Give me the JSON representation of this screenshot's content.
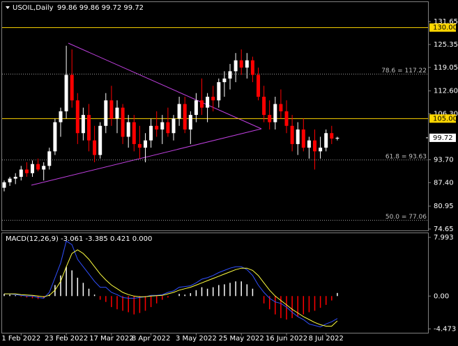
{
  "chart_data": {
    "type": "candlestick",
    "title": "USOIL,Daily",
    "ohlc_header": "99.86 99.86 99.72 99.72",
    "up_color": "#ffffff",
    "down_color": "#ff0000",
    "categories": [
      null,
      null,
      null,
      "1 Feb 2022",
      null,
      null,
      null,
      null,
      null,
      null,
      null,
      "23 Feb 2022",
      null,
      null,
      null,
      null,
      null,
      null,
      null,
      "17 Mar 2022",
      null,
      null,
      null,
      null,
      null,
      null,
      "8 Apr 2022",
      null,
      null,
      null,
      null,
      null,
      null,
      null,
      "3 May 2022",
      null,
      null,
      null,
      null,
      null,
      null,
      null,
      "25 May 2022",
      null,
      null,
      null,
      null,
      null,
      null,
      null,
      "16 Jun 2022",
      null,
      null,
      null,
      null,
      null,
      null,
      "8 Jul 2022",
      null,
      null
    ],
    "ohlc": [
      [
        86,
        88,
        85,
        87.5
      ],
      [
        87.5,
        89,
        86.5,
        88.5
      ],
      [
        88.5,
        90,
        87,
        89
      ],
      [
        89,
        92,
        88,
        91
      ],
      [
        91,
        93,
        89,
        90
      ],
      [
        90,
        93.5,
        89,
        92.5
      ],
      [
        92.5,
        94,
        90.5,
        91
      ],
      [
        91,
        93,
        88,
        92
      ],
      [
        92,
        97,
        91,
        96
      ],
      [
        96,
        105,
        95,
        104
      ],
      [
        104,
        108,
        100,
        107
      ],
      [
        107,
        125,
        105,
        117
      ],
      [
        117,
        124,
        108,
        110
      ],
      [
        110,
        112,
        98,
        101
      ],
      [
        101,
        108,
        99,
        106
      ],
      [
        106,
        109,
        96,
        99
      ],
      [
        99,
        103,
        93,
        95
      ],
      [
        95,
        104,
        94,
        103
      ],
      [
        103,
        112,
        101,
        110
      ],
      [
        110,
        114,
        103,
        105
      ],
      [
        105,
        110,
        101,
        108
      ],
      [
        108,
        109,
        98,
        100
      ],
      [
        100,
        106,
        97,
        104
      ],
      [
        104,
        106,
        96,
        98
      ],
      [
        98,
        103,
        94,
        97
      ],
      [
        97,
        101,
        93,
        99
      ],
      [
        99,
        105,
        97,
        103
      ],
      [
        103,
        107,
        100,
        102
      ],
      [
        102,
        106,
        98,
        104
      ],
      [
        104,
        108,
        100,
        101
      ],
      [
        101,
        106,
        99,
        105
      ],
      [
        105,
        111,
        103,
        109
      ],
      [
        109,
        111,
        101,
        102
      ],
      [
        102,
        107,
        98,
        106
      ],
      [
        106,
        112,
        104,
        110
      ],
      [
        110,
        116,
        106,
        108
      ],
      [
        108,
        112,
        104,
        111
      ],
      [
        111,
        114,
        107,
        110
      ],
      [
        110,
        116,
        108,
        115
      ],
      [
        115,
        118,
        111,
        116
      ],
      [
        116,
        120,
        113,
        118
      ],
      [
        118,
        123,
        115,
        121
      ],
      [
        121,
        124,
        117,
        119
      ],
      [
        119,
        123,
        116,
        121
      ],
      [
        121,
        122,
        115,
        117
      ],
      [
        117,
        119,
        110,
        111
      ],
      [
        111,
        114,
        104,
        106
      ],
      [
        106,
        110,
        102,
        104
      ],
      [
        104,
        111,
        102,
        109
      ],
      [
        109,
        113,
        105,
        107
      ],
      [
        107,
        110,
        101,
        103
      ],
      [
        103,
        106,
        96,
        98
      ],
      [
        98,
        104,
        95,
        102
      ],
      [
        102,
        105,
        96,
        97
      ],
      [
        97,
        100,
        94,
        99
      ],
      [
        99,
        102,
        91,
        96
      ],
      [
        96,
        100,
        94,
        97
      ],
      [
        97,
        102,
        96,
        101
      ],
      [
        101,
        103,
        98,
        99.5
      ],
      [
        99.5,
        100,
        99,
        99.72
      ]
    ],
    "ylim": [
      74.27,
      137.0
    ],
    "yticks": [
      131.65,
      125.35,
      119.05,
      {
        "value": 112.6,
        "label": "112.60"
      },
      {
        "value": 106.3,
        "label": "106.30"
      },
      {
        "value": 93.7,
        "label": "93.70"
      },
      {
        "value": 87.4,
        "label": "87.40"
      },
      80.95,
      74.65
    ],
    "price_levels": [
      {
        "value": 130,
        "label": "130.00",
        "color": "#ffd700"
      },
      {
        "value": 105,
        "label": "105.00",
        "color": "#ffd700"
      }
    ],
    "fib_levels": [
      {
        "value": 117.22,
        "label": "78.6 = 117.22"
      },
      {
        "value": 93.63,
        "label": "61.8 = 93.63"
      },
      {
        "value": 77.06,
        "label": "50.0 = 77.06"
      }
    ],
    "price_tag": {
      "value": 99.72,
      "label": "99.72"
    },
    "macd": {
      "title": "MACD(12,26,9) -3.061 -3.385 0.421 0.000",
      "ylim": [
        -5.0,
        8.56
      ],
      "yticks": [
        7.993,
        {
          "value": 0,
          "label": "0.00"
        },
        -4.473
      ],
      "histogram": [
        0.3,
        0.2,
        0.1,
        -0.1,
        -0.2,
        -0.3,
        -0.4,
        -0.3,
        0.2,
        1.5,
        2.8,
        4,
        3.5,
        2.5,
        1.8,
        1,
        0.2,
        -0.5,
        -0.8,
        -1.5,
        -1.8,
        -2,
        -2.2,
        -2.5,
        -2.3,
        -2,
        -1.5,
        -1,
        -0.5,
        -0.2,
        0,
        0.3,
        0.2,
        0.4,
        0.8,
        1.2,
        1,
        1.2,
        1.5,
        1.6,
        1.8,
        2,
        2,
        1.6,
        1,
        0,
        -1,
        -1.8,
        -2.5,
        -3,
        -3.2,
        -3,
        -2.8,
        -2.5,
        -2.2,
        -2,
        -1.6,
        -1.2,
        -0.6,
        0.421
      ],
      "series": [
        {
          "color": "#3050ff",
          "values": [
            0.3,
            0.3,
            0.2,
            0.1,
            0,
            0,
            -0.2,
            -0.3,
            0.5,
            2.5,
            4.5,
            7.5,
            7,
            5,
            4,
            3,
            2,
            1.2,
            1.2,
            0.5,
            0.2,
            -0.2,
            -0.3,
            -0.3,
            -0.2,
            -0.1,
            0.1,
            0.1,
            0.2,
            0.5,
            0.7,
            1.2,
            1.3,
            1.4,
            1.8,
            2.3,
            2.5,
            2.8,
            3.2,
            3.5,
            3.8,
            4,
            4,
            3.6,
            2.8,
            1.5,
            0.5,
            -0.3,
            -0.8,
            -1,
            -1.5,
            -2.2,
            -2.8,
            -3.2,
            -3.8,
            -4,
            -4.2,
            -3.8,
            -3.5,
            -3.061
          ]
        },
        {
          "color": "#ffff40",
          "values": [
            0.3,
            0.3,
            0.3,
            0.2,
            0.15,
            0.1,
            0,
            -0.1,
            0.1,
            0.8,
            2,
            4,
            5.8,
            6.3,
            5.8,
            5,
            4,
            3,
            2.2,
            1.5,
            1,
            0.5,
            0.2,
            0,
            -0.1,
            -0.1,
            0,
            0.05,
            0.1,
            0.3,
            0.5,
            0.8,
            1,
            1.2,
            1.5,
            1.8,
            2.1,
            2.4,
            2.7,
            3,
            3.3,
            3.6,
            3.8,
            3.8,
            3.5,
            2.8,
            1.8,
            0.8,
            0,
            -0.6,
            -1.2,
            -1.8,
            -2.3,
            -2.8,
            -3.2,
            -3.6,
            -3.9,
            -4.1,
            -4.1,
            -3.385
          ]
        }
      ]
    }
  }
}
